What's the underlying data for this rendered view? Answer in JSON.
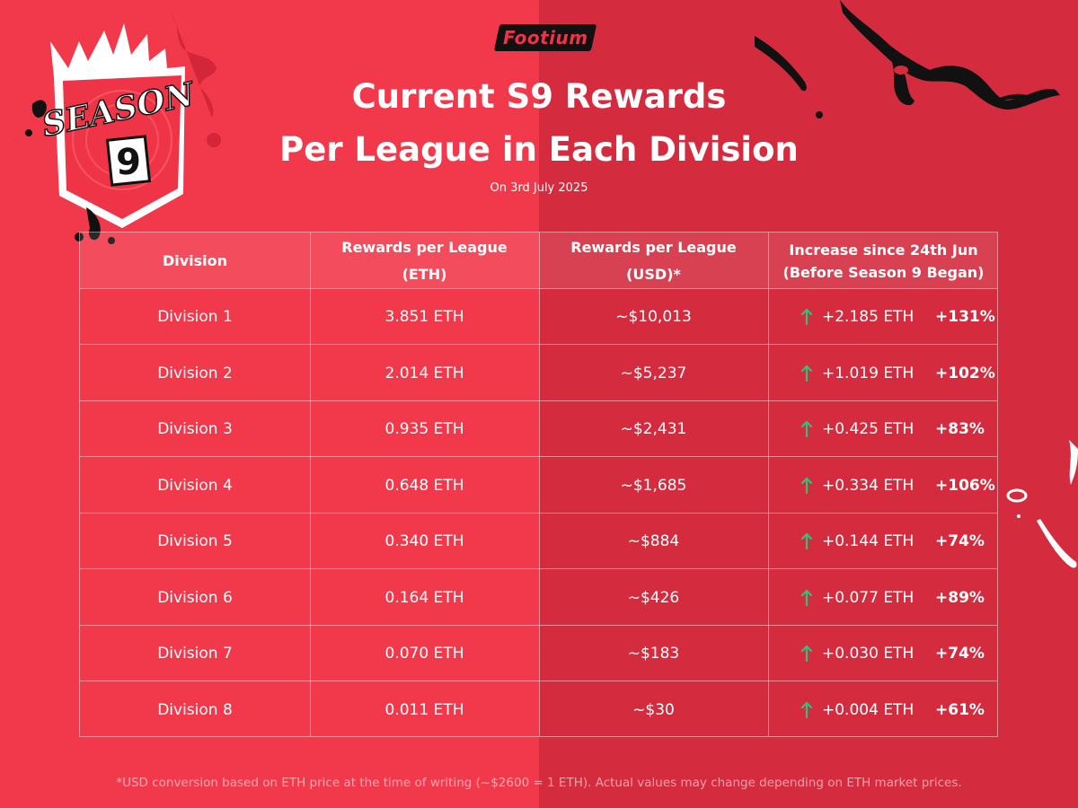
{
  "brand": {
    "logo_text": "Footium",
    "accent": "#f2394b",
    "accent_dark": "#d42c3e"
  },
  "badge": {
    "line1": "SEASON",
    "line2": "9"
  },
  "header": {
    "title_line1": "Current S9 Rewards",
    "title_line2": "Per League in Each Division",
    "subtitle": "On 3rd July 2025"
  },
  "table": {
    "columns": {
      "division": "Division",
      "eth_line1": "Rewards per League",
      "eth_line2": "(ETH)",
      "usd_line1": "Rewards per League",
      "usd_line2": "(USD)*",
      "inc_line1": "Increase since 24th Jun",
      "inc_line2": "(Before Season 9 Began)"
    },
    "rows": [
      {
        "division": "Division 1",
        "eth": "3.851 ETH",
        "usd": "~$10,013",
        "inc_eth": "+2.185 ETH",
        "inc_pct": "+131%"
      },
      {
        "division": "Division 2",
        "eth": "2.014 ETH",
        "usd": "~$5,237",
        "inc_eth": "+1.019 ETH",
        "inc_pct": "+102%"
      },
      {
        "division": "Division 3",
        "eth": "0.935 ETH",
        "usd": "~$2,431",
        "inc_eth": "+0.425 ETH",
        "inc_pct": "+83%"
      },
      {
        "division": "Division 4",
        "eth": "0.648 ETH",
        "usd": "~$1,685",
        "inc_eth": "+0.334 ETH",
        "inc_pct": "+106%"
      },
      {
        "division": "Division 5",
        "eth": "0.340 ETH",
        "usd": "~$884",
        "inc_eth": "+0.144 ETH",
        "inc_pct": "+74%"
      },
      {
        "division": "Division 6",
        "eth": "0.164 ETH",
        "usd": "~$426",
        "inc_eth": "+0.077 ETH",
        "inc_pct": "+89%"
      },
      {
        "division": "Division 7",
        "eth": "0.070 ETH",
        "usd": "~$183",
        "inc_eth": "+0.030 ETH",
        "inc_pct": "+74%"
      },
      {
        "division": "Division 8",
        "eth": "0.011 ETH",
        "usd": "~$30",
        "inc_eth": "+0.004 ETH",
        "inc_pct": "+61%"
      }
    ],
    "arrow_icon": "arrow-up-icon",
    "arrow_color": "#2ec27e"
  },
  "footnote": "*USD conversion based on ETH price at the time of writing (~$2600 = 1 ETH). Actual values may change depending on ETH market prices."
}
